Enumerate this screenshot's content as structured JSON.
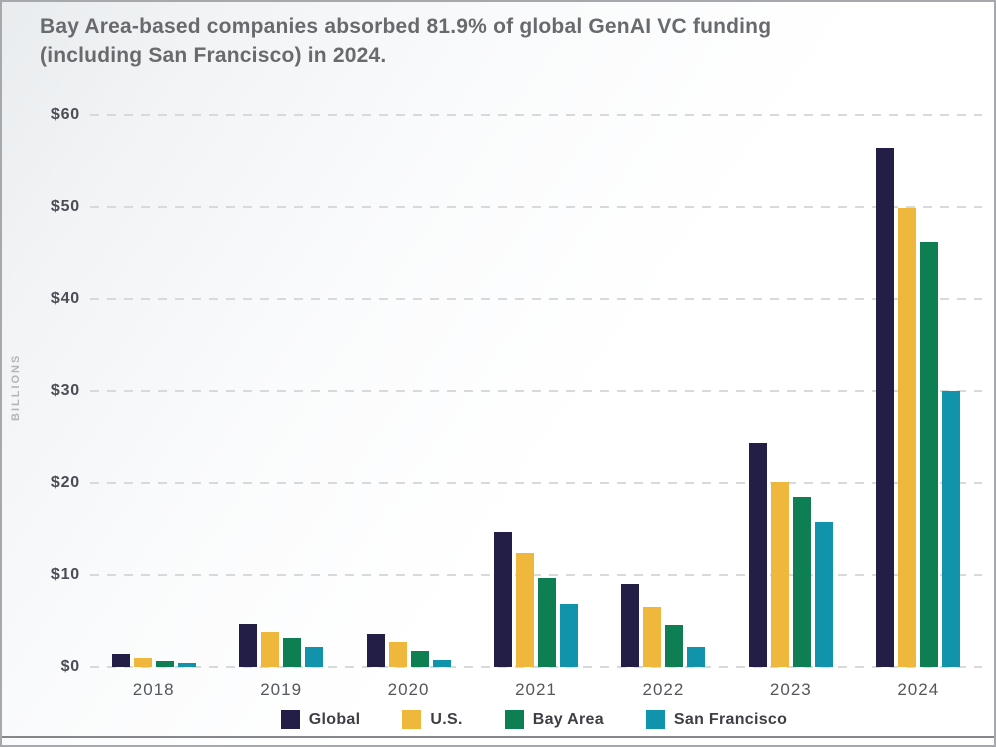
{
  "title": "Bay Area-based companies absorbed 81.9% of global GenAI VC funding (including San Francisco) in 2024.",
  "chart_data": {
    "type": "bar",
    "title": "Bay Area-based companies absorbed 81.9% of global GenAI VC funding (including San Francisco) in 2024.",
    "xlabel": "",
    "ylabel": "BILLIONS",
    "ylim": [
      0,
      60
    ],
    "grid": "horizontal-dashed",
    "legend_position": "bottom",
    "yticks": [
      {
        "value": 0,
        "label": "$0"
      },
      {
        "value": 10,
        "label": "$10"
      },
      {
        "value": 20,
        "label": "$20"
      },
      {
        "value": 30,
        "label": "$30"
      },
      {
        "value": 40,
        "label": "$40"
      },
      {
        "value": 50,
        "label": "$50"
      },
      {
        "value": 60,
        "label": "$60"
      }
    ],
    "categories": [
      "2018",
      "2019",
      "2020",
      "2021",
      "2022",
      "2023",
      "2024"
    ],
    "series": [
      {
        "name": "Global",
        "color": "#221e45",
        "values": [
          1.4,
          4.7,
          3.6,
          14.7,
          9.0,
          24.3,
          56.4
        ]
      },
      {
        "name": "U.S.",
        "color": "#efb73c",
        "values": [
          1.0,
          3.8,
          2.7,
          12.4,
          6.5,
          20.1,
          49.9
        ]
      },
      {
        "name": "Bay Area",
        "color": "#0d7f52",
        "values": [
          0.7,
          3.2,
          1.7,
          9.7,
          4.6,
          18.5,
          46.2
        ]
      },
      {
        "name": "San Francisco",
        "color": "#1093ab",
        "values": [
          0.4,
          2.2,
          0.8,
          6.9,
          2.2,
          15.8,
          30.0
        ]
      }
    ]
  }
}
